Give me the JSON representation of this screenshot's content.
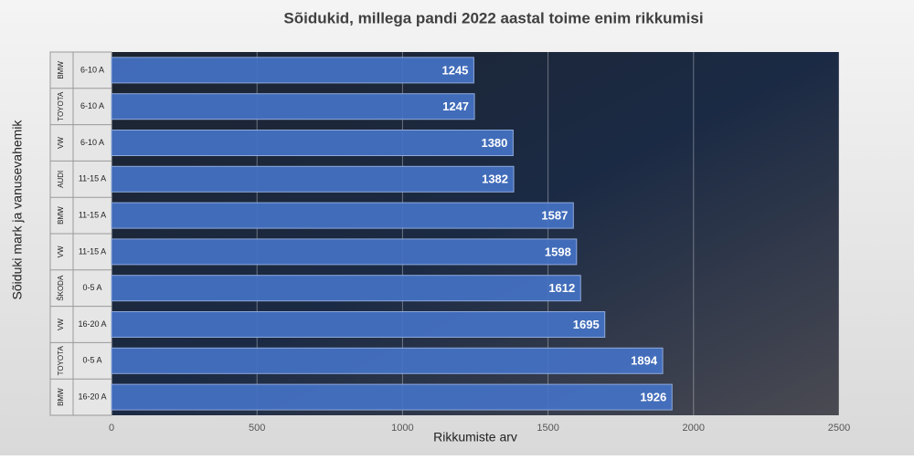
{
  "chart_data": {
    "type": "bar",
    "orientation": "horizontal",
    "title": "Sõidukid,  millega pandi 2022 aastal toime enim rikkumisi",
    "x_label": "Rikkumiste arv",
    "y_label": "Sõiduki mark ja vanusevahemik",
    "brands": [
      "BMW",
      "TOYOTA",
      "VW",
      "AUDI",
      "BMW",
      "VW",
      "ŠKODA",
      "VW",
      "TOYOTA",
      "BMW"
    ],
    "categories": [
      "6-10 A",
      "6-10 A",
      "6-10 A",
      "11-15 A",
      "11-15 A",
      "11-15 A",
      "0-5 A",
      "16-20 A",
      "0-5 A",
      "16-20 A"
    ],
    "values": [
      1245,
      1247,
      1380,
      1382,
      1587,
      1598,
      1612,
      1695,
      1894,
      1926
    ],
    "color": "#4472c4",
    "xlim": [
      0,
      2500
    ],
    "xticks": [
      0,
      500,
      1000,
      1500,
      2000,
      2500
    ],
    "grid": true
  }
}
